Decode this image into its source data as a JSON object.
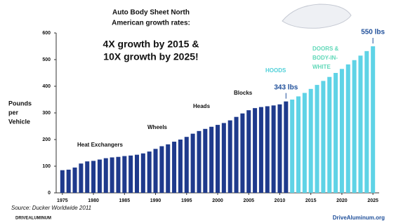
{
  "chart_data": {
    "type": "bar",
    "title_lines": [
      "Auto Body Sheet North",
      "American growth rates:"
    ],
    "subtitle_lines": [
      "4X growth by 2015 &",
      "10X growth by 2025!"
    ],
    "ylabel_lines": [
      "Pounds",
      "per",
      "Vehicle"
    ],
    "x": [
      1975,
      1976,
      1977,
      1978,
      1979,
      1980,
      1981,
      1982,
      1983,
      1984,
      1985,
      1986,
      1987,
      1988,
      1989,
      1990,
      1991,
      1992,
      1993,
      1994,
      1995,
      1996,
      1997,
      1998,
      1999,
      2000,
      2001,
      2002,
      2003,
      2004,
      2005,
      2006,
      2007,
      2008,
      2009,
      2010,
      2011,
      2012,
      2013,
      2014,
      2015,
      2016,
      2017,
      2018,
      2019,
      2020,
      2021,
      2022,
      2023,
      2024,
      2025
    ],
    "xlim": [
      1974,
      2026
    ],
    "xticks": [
      1975,
      1980,
      1985,
      1990,
      1995,
      2000,
      2005,
      2010,
      2015,
      2020,
      2025
    ],
    "ylim": [
      0,
      600
    ],
    "yticks": [
      0,
      100,
      200,
      300,
      400,
      500,
      600
    ],
    "series": [
      {
        "color": "#1f3a8c",
        "values": [
          85,
          87,
          95,
          110,
          118,
          120,
          125,
          130,
          133,
          135,
          138,
          140,
          143,
          148,
          155,
          165,
          175,
          182,
          192,
          200,
          210,
          222,
          232,
          240,
          248,
          255,
          262,
          272,
          285,
          298,
          310,
          318,
          322,
          325,
          328,
          332,
          343,
          null,
          null,
          null,
          null,
          null,
          null,
          null,
          null,
          null,
          null,
          null,
          null,
          null,
          null
        ],
        "value_labels": [
          null,
          null,
          null,
          null,
          null,
          null,
          null,
          null,
          null,
          null,
          null,
          null,
          null,
          null,
          null,
          null,
          null,
          null,
          null,
          null,
          null,
          null,
          null,
          null,
          null,
          null,
          null,
          null,
          null,
          null,
          null,
          null,
          null,
          null,
          null,
          null,
          "343 lbs",
          null,
          null,
          null,
          null,
          null,
          null,
          null,
          null,
          null,
          null,
          null,
          null,
          null,
          null
        ]
      },
      {
        "color": "#5fd3e6",
        "values": [
          null,
          null,
          null,
          null,
          null,
          null,
          null,
          null,
          null,
          null,
          null,
          null,
          null,
          null,
          null,
          null,
          null,
          null,
          null,
          null,
          null,
          null,
          null,
          null,
          null,
          null,
          null,
          null,
          null,
          null,
          null,
          null,
          null,
          null,
          null,
          null,
          null,
          350,
          362,
          375,
          390,
          405,
          420,
          435,
          450,
          465,
          482,
          498,
          515,
          532,
          550
        ],
        "value_labels": [
          null,
          null,
          null,
          null,
          null,
          null,
          null,
          null,
          null,
          null,
          null,
          null,
          null,
          null,
          null,
          null,
          null,
          null,
          null,
          null,
          null,
          null,
          null,
          null,
          null,
          null,
          null,
          null,
          null,
          null,
          null,
          null,
          null,
          null,
          null,
          null,
          null,
          null,
          null,
          null,
          null,
          null,
          null,
          null,
          null,
          null,
          null,
          null,
          null,
          null,
          "550 lbs"
        ]
      }
    ],
    "value_label_color": "#1f4f9a",
    "annotations": [
      {
        "lines": [
          "Heat Exchangers"
        ],
        "color": "#111111"
      },
      {
        "lines": [
          "Wheels"
        ],
        "color": "#111111"
      },
      {
        "lines": [
          "Heads"
        ],
        "color": "#111111"
      },
      {
        "lines": [
          "Blocks"
        ],
        "color": "#111111"
      },
      {
        "lines": [
          "HOODS"
        ],
        "color": "#4fd0d8"
      },
      {
        "lines": [
          "DOORS &",
          "BODY-IN-",
          "WHITE"
        ],
        "color": "#5fd8b8"
      }
    ],
    "source": "Source:  Ducker Worldwide 2011",
    "footer_left": "DRIVEALUMINUM",
    "footer_right": "DriveAluminum.org"
  }
}
